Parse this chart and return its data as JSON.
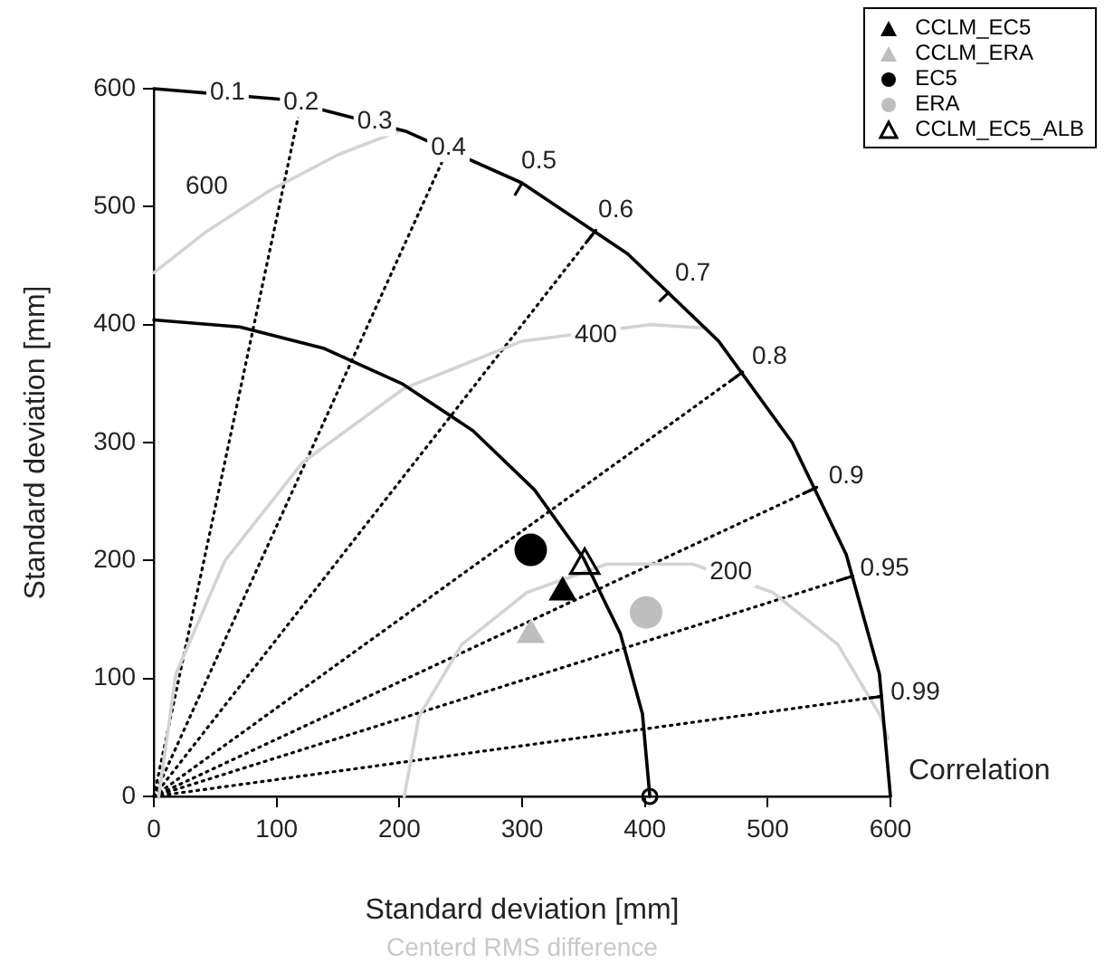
{
  "chart_data": {
    "type": "scatter",
    "xlabel": "Standard deviation [mm]",
    "ylabel": "Standard deviation [mm]",
    "xlim": [
      0,
      600
    ],
    "ylim": [
      0,
      600
    ],
    "xticks": [
      0,
      100,
      200,
      300,
      400,
      500,
      600
    ],
    "yticks": [
      0,
      100,
      200,
      300,
      400,
      500,
      600
    ],
    "grid": false,
    "legend": "top right",
    "series": [
      {
        "name": "CCLM_EC5",
        "color": "#000000",
        "marker": "triangle",
        "x": [
          333
        ],
        "values": [
          173
        ]
      },
      {
        "name": "CCLM_ERA",
        "color": "#bebebe",
        "marker": "triangle",
        "x": [
          307
        ],
        "values": [
          137
        ]
      },
      {
        "name": "EC5",
        "color": "#000000",
        "marker": "circle",
        "x": [
          307
        ],
        "values": [
          209
        ]
      },
      {
        "name": "ERA",
        "color": "#bebebe",
        "marker": "circle",
        "x": [
          401
        ],
        "values": [
          156
        ]
      },
      {
        "name": "CCLM_EC5_ALB",
        "color": "#000000",
        "marker": "triangle-open",
        "x": [
          351
        ],
        "values": [
          196
        ]
      },
      {
        "type": "scatter",
        "color": "#000000",
        "marker": "circle-open",
        "x": [
          404
        ],
        "values": [
          0
        ]
      },
      {
        "type": "line",
        "color": "#000000",
        "line_style": "solid",
        "x": [
          600,
          591,
          564,
          520,
          460,
          386,
          300,
          205,
          104,
          0
        ],
        "values": [
          0,
          104,
          205,
          300,
          386,
          460,
          520,
          564,
          591,
          600
        ]
      },
      {
        "type": "line",
        "color": "#000000",
        "line_style": "solid",
        "x": [
          404,
          398,
          380,
          350,
          310,
          260,
          202,
          138,
          70,
          0
        ],
        "values": [
          0,
          70,
          138,
          202,
          260,
          310,
          350,
          380,
          398,
          404
        ]
      },
      {
        "type": "line",
        "color": "#d3d3d3",
        "line_style": "solid",
        "x": [
          204,
          216,
          251,
          304,
          369,
          439,
          504,
          557,
          592,
          598
        ],
        "values": [
          0,
          68,
          129,
          173,
          197,
          197,
          173,
          129,
          68,
          49
        ]
      },
      {
        "type": "line",
        "color": "#d3d3d3",
        "line_style": "solid",
        "x": [
          4,
          18,
          58,
          121,
          204,
          300,
          404,
          450
        ],
        "values": [
          0,
          104,
          200,
          283,
          346,
          386,
          400,
          397
        ]
      },
      {
        "type": "line",
        "color": "#d3d3d3",
        "line_style": "solid",
        "x": [
          0,
          43,
          95,
          150,
          202
        ],
        "values": [
          444,
          479,
          514,
          544,
          565
        ]
      },
      {
        "type": "line",
        "color": "#000000",
        "line_style": "dotted",
        "x": [
          0,
          120
        ],
        "values": [
          0,
          588
        ]
      },
      {
        "type": "line",
        "color": "#000000",
        "line_style": "dotted",
        "x": [
          0,
          240
        ],
        "values": [
          0,
          550
        ]
      },
      {
        "type": "line",
        "color": "#000000",
        "line_style": "dotted",
        "x": [
          0,
          360
        ],
        "values": [
          0,
          480
        ]
      },
      {
        "type": "line",
        "color": "#000000",
        "line_style": "dotted",
        "x": [
          0,
          480
        ],
        "values": [
          0,
          360
        ]
      },
      {
        "type": "line",
        "color": "#000000",
        "line_style": "dotted",
        "x": [
          0,
          540
        ],
        "values": [
          0,
          262
        ]
      },
      {
        "type": "line",
        "color": "#000000",
        "line_style": "dotted",
        "x": [
          0,
          570
        ],
        "values": [
          0,
          187
        ]
      },
      {
        "type": "line",
        "color": "#000000",
        "line_style": "dotted",
        "x": [
          0,
          594
        ],
        "values": [
          0,
          85
        ]
      }
    ],
    "annotations": [
      "Correlation",
      "Centerd RMS difference",
      {
        "text": "0.1",
        "x": 60,
        "y": 597
      },
      {
        "text": "0.2",
        "x": 120,
        "y": 588
      },
      {
        "text": "0.3",
        "x": 180,
        "y": 572
      },
      {
        "text": "0.4",
        "x": 240,
        "y": 550
      },
      {
        "text": "0.5",
        "x": 300,
        "y": 520
      },
      {
        "text": "0.6",
        "x": 360,
        "y": 480
      },
      {
        "text": "0.7",
        "x": 420,
        "y": 428
      },
      {
        "text": "0.8",
        "x": 480,
        "y": 360
      },
      {
        "text": "0.9",
        "x": 540,
        "y": 262
      },
      {
        "text": "0.95",
        "x": 570,
        "y": 187
      },
      {
        "text": "0.99",
        "x": 594,
        "y": 85
      },
      {
        "text": "200",
        "x": 470,
        "y": 190
      },
      {
        "text": "400",
        "x": 360,
        "y": 391
      },
      {
        "text": "600",
        "x": 43,
        "y": 517
      }
    ]
  }
}
